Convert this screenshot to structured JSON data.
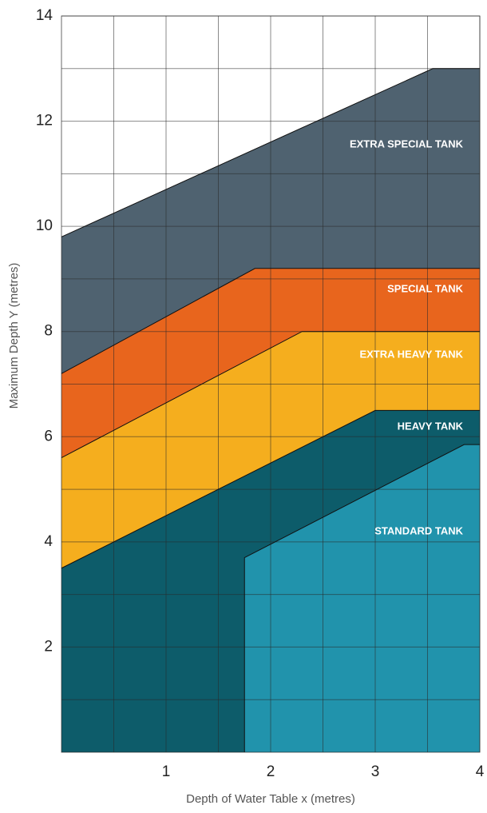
{
  "chart_data": {
    "type": "area",
    "xlabel": "Depth of Water Table x (metres)",
    "ylabel": "Maximum Depth Y (metres)",
    "xlim": [
      0,
      4
    ],
    "xticks": [
      1,
      2,
      3,
      4
    ],
    "ylim": [
      0,
      14
    ],
    "yticks": [
      2,
      4,
      6,
      8,
      10,
      12,
      14
    ],
    "grid": true,
    "series": [
      {
        "name": "EXTRA SPECIAL TANK",
        "color": "#4f6270",
        "x": [
          0,
          3.55,
          4
        ],
        "values": [
          9.8,
          13,
          13
        ]
      },
      {
        "name": "SPECIAL TANK",
        "color": "#e8651d",
        "x": [
          0,
          1.85,
          4
        ],
        "values": [
          7.2,
          9.2,
          9.2
        ]
      },
      {
        "name": "EXTRA HEAVY TANK",
        "color": "#f5ae1e",
        "x": [
          0,
          2.3,
          4
        ],
        "values": [
          5.6,
          8,
          8
        ]
      },
      {
        "name": "HEAVY TANK",
        "color": "#0d5c6a",
        "x": [
          0,
          3,
          4
        ],
        "values": [
          3.5,
          6.5,
          6.5
        ]
      },
      {
        "name": "STANDARD TANK",
        "color": "#2193ac",
        "x": [
          1.75,
          1.75,
          3.85,
          4
        ],
        "values": [
          0,
          3.7,
          5.85,
          5.85
        ]
      }
    ]
  }
}
